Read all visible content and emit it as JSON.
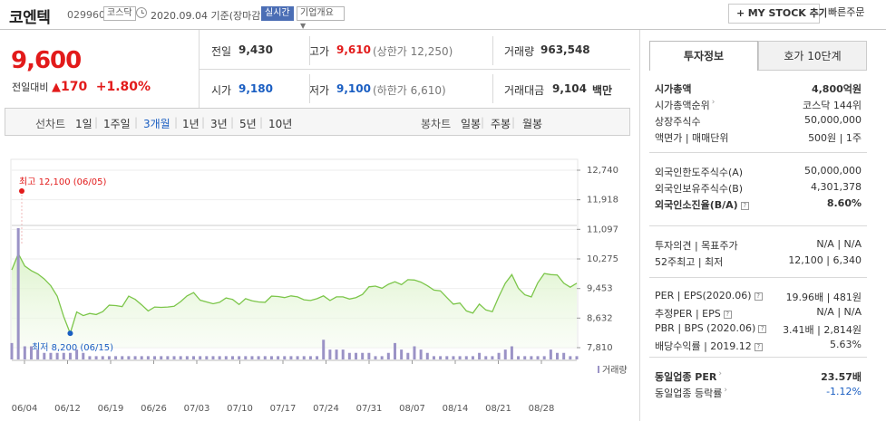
{
  "header": {
    "name": "코엔텍",
    "code": "029960",
    "market": "코스닥",
    "date": "2020.09.04",
    "date_suffix": "기준(장마감)",
    "realtime": "실시간",
    "company_info": "기업개요",
    "my_stock": "MY STOCK 추가",
    "quick_order": "빠른주문"
  },
  "price": {
    "current": "9,600",
    "change_label": "전일대비",
    "change": "170",
    "change_pct": "+1.80%"
  },
  "summary": {
    "prev_label": "전일",
    "prev": "9,430",
    "high_label": "고가",
    "high": "9,610",
    "upper": "(상한가 12,250)",
    "volume_label": "거래량",
    "volume": "963,548",
    "open_label": "시가",
    "open": "9,180",
    "low_label": "저가",
    "low": "9,100",
    "lower": "(하한가 6,610)",
    "amount_label": "거래대금",
    "amount": "9,104",
    "amount_unit": "백만"
  },
  "toolbar": {
    "line_chart": "선차트",
    "periods": [
      "1일",
      "1주일",
      "3개월",
      "1년",
      "3년",
      "5년",
      "10년"
    ],
    "active_period": "3개월",
    "candle_chart": "봉차트",
    "candles": [
      "일봉",
      "주봉",
      "월봉"
    ]
  },
  "chart_data": {
    "type": "line",
    "color": "#7cc64a",
    "y_ticks": [
      "12,740",
      "11,918",
      "11,097",
      "10,275",
      "9,453",
      "8,632",
      "7,810"
    ],
    "ylim": [
      7810,
      12740
    ],
    "x_ticks": [
      "06/04",
      "06/12",
      "06/19",
      "06/26",
      "07/03",
      "07/10",
      "07/17",
      "07/24",
      "07/31",
      "08/07",
      "08/14",
      "08/21",
      "08/28"
    ],
    "high_annotation": "최고 12,100 (06/05)",
    "low_annotation": "최저 8,200 (06/15)",
    "volume_label": "거래량",
    "values": [
      9970,
      10420,
      10080,
      9950,
      9860,
      9720,
      9530,
      9240,
      8670,
      8210,
      8800,
      8700,
      8760,
      8730,
      8810,
      8990,
      8980,
      8950,
      9240,
      9150,
      9000,
      8830,
      8940,
      8930,
      8940,
      8960,
      9090,
      9250,
      9340,
      9130,
      9080,
      9030,
      9070,
      9190,
      9150,
      9010,
      9170,
      9110,
      9080,
      9070,
      9240,
      9230,
      9200,
      9250,
      9220,
      9140,
      9120,
      9170,
      9250,
      9120,
      9220,
      9220,
      9160,
      9200,
      9290,
      9500,
      9520,
      9460,
      9570,
      9640,
      9560,
      9700,
      9690,
      9630,
      9530,
      9410,
      9390,
      9200,
      9020,
      9050,
      8830,
      8770,
      9020,
      8860,
      8810,
      9230,
      9600,
      9840,
      9460,
      9280,
      9220,
      9610,
      9870,
      9840,
      9830,
      9600,
      9490,
      9600
    ],
    "volumes": [
      5,
      40,
      4,
      4,
      3,
      2,
      2,
      2,
      2,
      2,
      3,
      2,
      1,
      1,
      1,
      1,
      1,
      1,
      1,
      1,
      1,
      1,
      1,
      1,
      1,
      1,
      1,
      1,
      1,
      1,
      1,
      1,
      1,
      1,
      1,
      1,
      1,
      1,
      1,
      1,
      1,
      1,
      1,
      1,
      1,
      1,
      1,
      1,
      6,
      3,
      3,
      3,
      2,
      2,
      2,
      2,
      1,
      1,
      2,
      5,
      3,
      2,
      4,
      3,
      2,
      1,
      1,
      1,
      1,
      1,
      1,
      1,
      2,
      1,
      1,
      2,
      3,
      4,
      1,
      1,
      1,
      1,
      1,
      3,
      2,
      2,
      1,
      1
    ]
  },
  "right_panel": {
    "tabs": [
      "투자정보",
      "호가 10단계"
    ],
    "active_tab": "투자정보",
    "sections": [
      {
        "rows": [
          {
            "label": "시가총액",
            "value": "4,800억원",
            "bold": true
          },
          {
            "label": "시가총액순위",
            "value": "코스닥 144위",
            "arrow": true
          },
          {
            "label": "상장주식수",
            "value": "50,000,000"
          },
          {
            "label": "액면가 | 매매단위",
            "value": "500원 | 1주"
          }
        ]
      },
      {
        "rows": [
          {
            "label": "외국인한도주식수(A)",
            "value": "50,000,000"
          },
          {
            "label": "외국인보유주식수(B)",
            "value": "4,301,378"
          },
          {
            "label": "외국인소진율(B/A)",
            "value": "8.60%",
            "bold": true,
            "help": true
          }
        ]
      },
      {
        "rows": [
          {
            "label": "투자의견 | 목표주가",
            "value": "N/A | N/A"
          },
          {
            "label": "52주최고 | 최저",
            "value": "12,100 | 6,340"
          }
        ]
      },
      {
        "rows": [
          {
            "label": "PER | EPS(2020.06)",
            "value": "19.96배 | 481원",
            "help": true
          },
          {
            "label": "추정PER | EPS",
            "value": "N/A | N/A",
            "help": true
          },
          {
            "label": "PBR | BPS (2020.06)",
            "value": "3.41배 | 2,814원",
            "help": true
          },
          {
            "label": "배당수익률 | 2019.12",
            "value": "5.63%",
            "help": true
          }
        ]
      },
      {
        "rows": [
          {
            "label": "동일업종 PER",
            "value": "23.57배",
            "bold": true,
            "arrow": true
          },
          {
            "label": "동일업종 등락률",
            "value": "-1.12%",
            "arrow": true,
            "valueColor": "#1a5ec2"
          }
        ]
      }
    ]
  }
}
